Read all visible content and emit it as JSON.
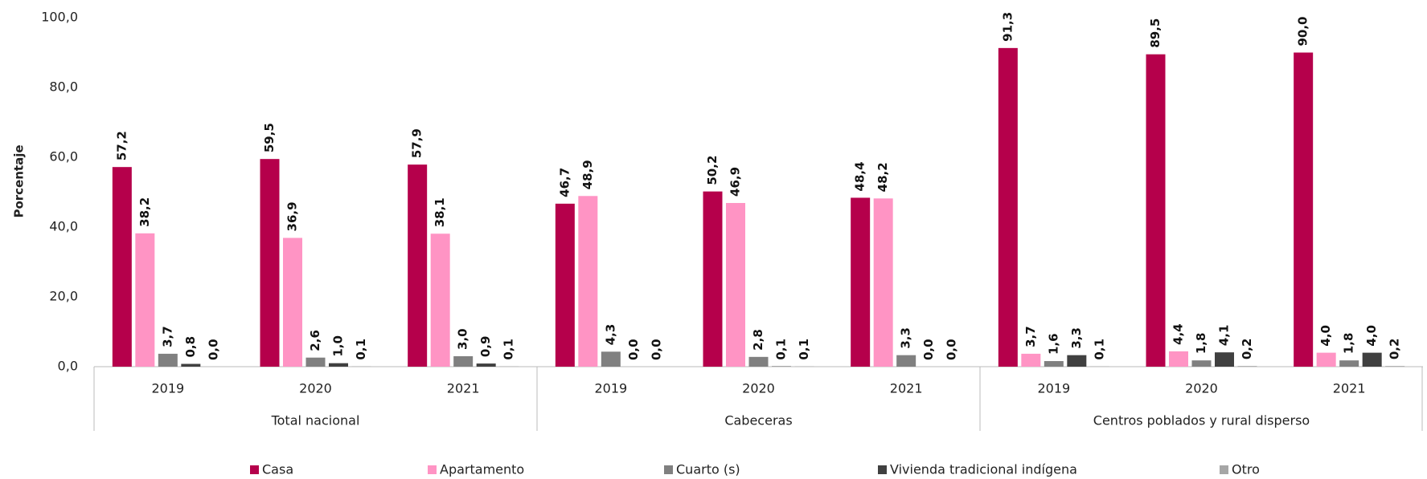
{
  "chart_data": {
    "type": "bar",
    "y_axis_label": "Porcentaje",
    "categories": [
      "2019",
      "2020",
      "2021",
      "2019",
      "2020",
      "2021",
      "2019",
      "2020",
      "2021"
    ],
    "groups": [
      "Total nacional",
      "Cabeceras",
      "Centros poblados y rural disperso"
    ],
    "series": [
      {
        "name": "Casa",
        "color": "#b5004b",
        "values": [
          57.2,
          59.5,
          57.9,
          46.7,
          50.2,
          48.4,
          91.3,
          89.5,
          90.0
        ],
        "value_labels": [
          "57,2",
          "59,5",
          "57,9",
          "46,7",
          "50,2",
          "48,4",
          "91,3",
          "89,5",
          "90,0"
        ]
      },
      {
        "name": "Apartamento",
        "color": "#ff94c4",
        "values": [
          38.2,
          36.9,
          38.1,
          48.9,
          46.9,
          48.2,
          3.7,
          4.4,
          4.0
        ],
        "value_labels": [
          "38,2",
          "36,9",
          "38,1",
          "48,9",
          "46,9",
          "48,2",
          "3,7",
          "4,4",
          "4,0"
        ]
      },
      {
        "name": "Cuarto (s)",
        "color": "#808080",
        "values": [
          3.7,
          2.6,
          3.0,
          4.3,
          2.8,
          3.3,
          1.6,
          1.8,
          1.8
        ],
        "value_labels": [
          "3,7",
          "2,6",
          "3,0",
          "4,3",
          "2,8",
          "3,3",
          "1,6",
          "1,8",
          "1,8"
        ]
      },
      {
        "name": "Vivienda tradicional indígena",
        "color": "#404040",
        "values": [
          0.8,
          1.0,
          0.9,
          0.0,
          0.1,
          0.0,
          3.3,
          4.1,
          4.0
        ],
        "value_labels": [
          "0,8",
          "1,0",
          "0,9",
          "0,0",
          "0,1",
          "0,0",
          "3,3",
          "4,1",
          "4,0"
        ]
      },
      {
        "name": "Otro",
        "color": "#a6a6a6",
        "values": [
          0.0,
          0.1,
          0.1,
          0.0,
          0.1,
          0.0,
          0.1,
          0.2,
          0.2
        ],
        "value_labels": [
          "0,0",
          "0,1",
          "0,1",
          "0,0",
          "0,1",
          "0,0",
          "0,1",
          "0,2",
          "0,2"
        ]
      }
    ],
    "ylim": [
      0,
      100
    ],
    "yticks": [
      {
        "value": 0,
        "label": "0,0"
      },
      {
        "value": 20,
        "label": "20,0"
      },
      {
        "value": 40,
        "label": "40,0"
      },
      {
        "value": 60,
        "label": "60,0"
      },
      {
        "value": 80,
        "label": "80,0"
      },
      {
        "value": 100,
        "label": "100,0"
      }
    ],
    "grid": false,
    "legend": "bottom"
  }
}
